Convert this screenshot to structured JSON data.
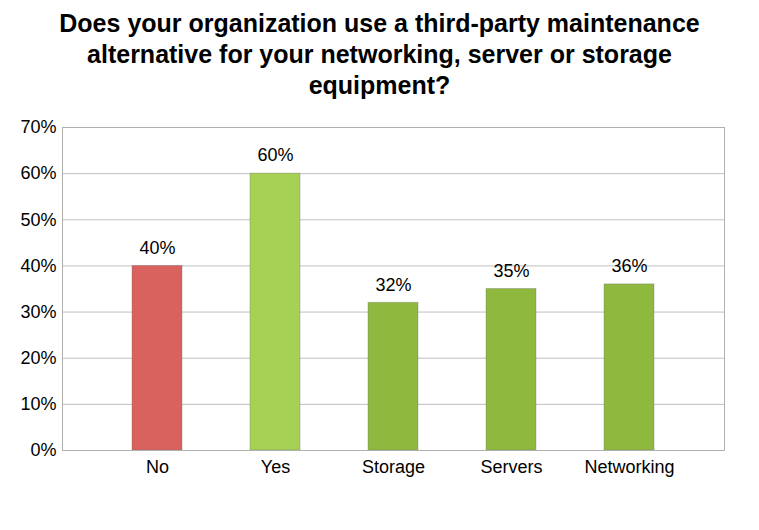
{
  "chart_data": {
    "type": "bar",
    "title": "Does your organization use a third-party maintenance alternative for your networking, server or storage equipment?",
    "categories": [
      "No",
      "Yes",
      "Storage",
      "Servers",
      "Networking"
    ],
    "values": [
      40,
      60,
      32,
      35,
      36
    ],
    "value_labels": [
      "40%",
      "60%",
      "32%",
      "35%",
      "36%"
    ],
    "colors": [
      "#d9615e",
      "#a6d155",
      "#8fb83e",
      "#8fb83e",
      "#8fb83e"
    ],
    "data_labels": true,
    "ylim": [
      0,
      70
    ],
    "yticks": [
      {
        "value": 0,
        "label": "0%"
      },
      {
        "value": 10,
        "label": "10%"
      },
      {
        "value": 20,
        "label": "20%"
      },
      {
        "value": 30,
        "label": "30%"
      },
      {
        "value": 40,
        "label": "40%"
      },
      {
        "value": 50,
        "label": "50%"
      },
      {
        "value": 60,
        "label": "60%"
      },
      {
        "value": 70,
        "label": "70%"
      }
    ],
    "grid": true
  }
}
